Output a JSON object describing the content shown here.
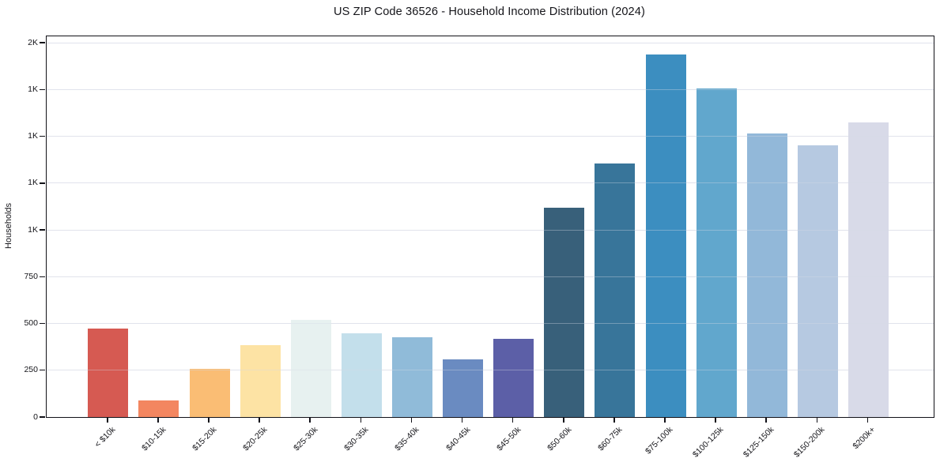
{
  "figure": {
    "title": "US ZIP Code 36526 - Household Income Distribution (2024)"
  },
  "chart_data": {
    "type": "bar",
    "title": "US ZIP Code 36526 - Household Income Distribution (2024)",
    "xlabel": "",
    "ylabel": "Households",
    "categories": [
      "< $10k",
      "$10-15k",
      "$15-20k",
      "$20-25k",
      "$25-30k",
      "$30-35k",
      "$35-40k",
      "$40-45k",
      "$45-50k",
      "$50-60k",
      "$60-75k",
      "$75-100k",
      "$100-125k",
      "$125-150k",
      "$150-200k",
      "$200k+"
    ],
    "values": [
      475,
      88,
      257,
      385,
      521,
      447,
      426,
      310,
      416,
      1120,
      1356,
      1939,
      1758,
      1514,
      1453,
      1574
    ],
    "bar_colors": [
      "#d65a52",
      "#f38660",
      "#fabd74",
      "#fde3a4",
      "#e7f1f0",
      "#c3dfeb",
      "#90bbd9",
      "#6a8bc1",
      "#5c5fa7",
      "#38607a",
      "#38759a",
      "#3c8ec0",
      "#61a7cd",
      "#92b8d9",
      "#b6c9e1",
      "#d8dae8"
    ],
    "ylim": [
      0,
      2035
    ],
    "yticks": [
      {
        "value": 0,
        "label": "0"
      },
      {
        "value": 250,
        "label": "250"
      },
      {
        "value": 500,
        "label": "500"
      },
      {
        "value": 750,
        "label": "750"
      },
      {
        "value": 1000,
        "label": "1K"
      },
      {
        "value": 1250,
        "label": "1K"
      },
      {
        "value": 1500,
        "label": "1K"
      },
      {
        "value": 1750,
        "label": "1K"
      },
      {
        "value": 2000,
        "label": "2K"
      }
    ],
    "grid": "horizontal",
    "legend": "none",
    "colors": {
      "background": "#ffffff",
      "grid": "#e9e9f0",
      "spine": "#111118",
      "text": "#15151a"
    }
  }
}
